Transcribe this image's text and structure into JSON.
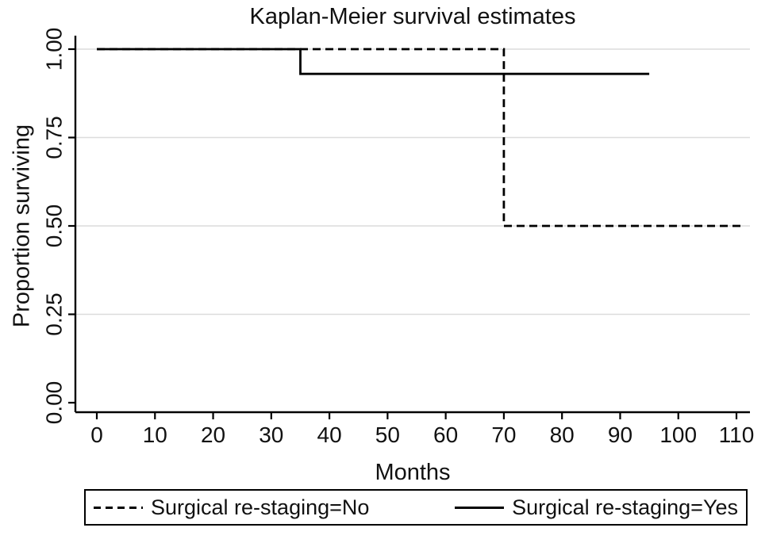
{
  "figure": {
    "background": "#ffffff",
    "line_color": "#000000",
    "grid_color": "#dcdcdc"
  },
  "chart_data": {
    "type": "line",
    "subtype": "kaplan-meier-step",
    "title": "Kaplan-Meier survival estimates",
    "xlabel": "Months",
    "ylabel": "Proportion surviving",
    "xlim": [
      0,
      112
    ],
    "ylim": [
      0,
      1
    ],
    "xticks": [
      0,
      10,
      20,
      30,
      40,
      50,
      60,
      70,
      80,
      90,
      100,
      110
    ],
    "yticks": [
      0,
      0.25,
      0.5,
      0.75,
      1
    ],
    "ytick_labels": [
      "0.00",
      "0.25",
      "0.50",
      "0.75",
      "1.00"
    ],
    "grid": "horizontal-major",
    "legend_position": "bottom",
    "series": [
      {
        "name": "Surgical re-staging=No",
        "line_style": "dashed",
        "color": "#000000",
        "points": [
          [
            0,
            1.0
          ],
          [
            70,
            1.0
          ],
          [
            70,
            0.5
          ],
          [
            111,
            0.5
          ]
        ]
      },
      {
        "name": "Surgical re-staging=Yes",
        "line_style": "solid",
        "color": "#000000",
        "points": [
          [
            0,
            1.0
          ],
          [
            35,
            1.0
          ],
          [
            35,
            0.93
          ],
          [
            95,
            0.93
          ]
        ]
      }
    ]
  }
}
